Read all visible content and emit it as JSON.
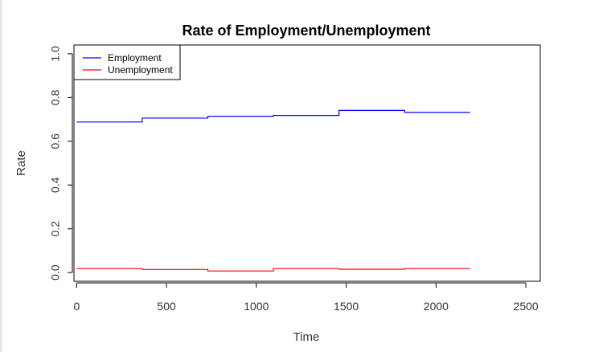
{
  "chart_data": {
    "type": "line",
    "title": "Rate of Employment/Unemployment",
    "xlabel": "Time",
    "ylabel": "Rate",
    "xlim": [
      -15,
      2580
    ],
    "ylim": [
      -0.04,
      1.04
    ],
    "xticks": [
      0,
      500,
      1000,
      1500,
      2000,
      2500
    ],
    "xtick_labels": [
      "0",
      "500",
      "1000",
      "1500",
      "2000",
      "2500"
    ],
    "yticks": [
      0.0,
      0.2,
      0.4,
      0.6,
      0.8,
      1.0
    ],
    "ytick_labels": [
      "0.0",
      "0.2",
      "0.4",
      "0.6",
      "0.8",
      "1.0"
    ],
    "grid": false,
    "legend_position": "top-left",
    "series": [
      {
        "name": "Employment",
        "color": "#0000ff",
        "x": [
          0,
          365,
          730,
          1095,
          1460,
          1825,
          2190
        ],
        "y": [
          0.688,
          0.706,
          0.714,
          0.718,
          0.741,
          0.732,
          0.732
        ]
      },
      {
        "name": "Unemployment",
        "color": "#ff0000",
        "x": [
          0,
          365,
          730,
          1095,
          1460,
          1825,
          2190
        ],
        "y": [
          0.018,
          0.014,
          0.007,
          0.018,
          0.015,
          0.018,
          0.018
        ]
      }
    ]
  }
}
